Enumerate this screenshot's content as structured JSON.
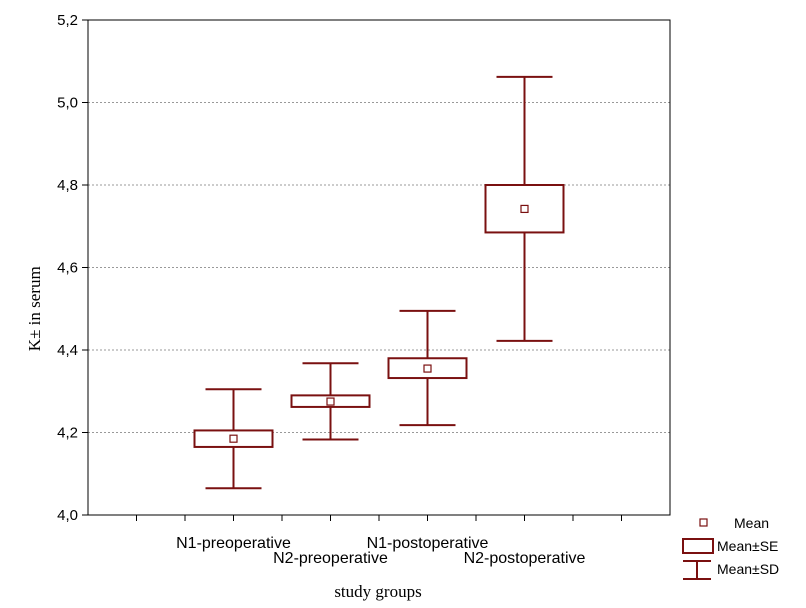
{
  "chart_data": {
    "type": "box",
    "xlabel": "study groups",
    "ylabel": "K± in serum",
    "ylim": [
      4.0,
      5.2
    ],
    "yticks": [
      "4,0",
      "4,2",
      "4,4",
      "4,6",
      "4,8",
      "5,0",
      "5,2"
    ],
    "ytick_values": [
      4.0,
      4.2,
      4.4,
      4.6,
      4.8,
      5.0,
      5.2
    ],
    "grid": true,
    "legend_position": "bottom-right",
    "legend": [
      "Mean",
      "Mean±SE",
      "Mean±SD"
    ],
    "categories": [
      "N1-preoperative",
      "N2-preoperative",
      "N1-postoperative",
      "N2-postoperative"
    ],
    "series": [
      {
        "category": "N1-preoperative",
        "mean": 4.185,
        "se_low": 4.165,
        "se_high": 4.205,
        "sd_low": 4.065,
        "sd_high": 4.305
      },
      {
        "category": "N2-preoperative",
        "mean": 4.275,
        "se_low": 4.262,
        "se_high": 4.29,
        "sd_low": 4.183,
        "sd_high": 4.368
      },
      {
        "category": "N1-postoperative",
        "mean": 4.355,
        "se_low": 4.332,
        "se_high": 4.38,
        "sd_low": 4.218,
        "sd_high": 4.495
      },
      {
        "category": "N2-postoperative",
        "mean": 4.742,
        "se_low": 4.685,
        "se_high": 4.8,
        "sd_low": 4.422,
        "sd_high": 5.062
      }
    ],
    "color": "#7a1010"
  }
}
